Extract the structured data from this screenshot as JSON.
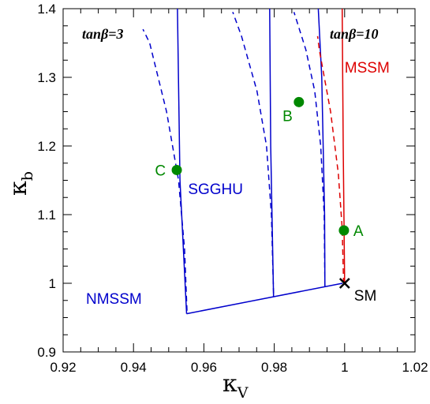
{
  "chart_data": {
    "type": "line",
    "title": "",
    "xlabel": "κ",
    "xlabel_sub": "V",
    "ylabel": "κ",
    "ylabel_sub": "b",
    "xlim": [
      0.92,
      1.02
    ],
    "ylim": [
      0.9,
      1.4
    ],
    "x_ticks": [
      0.92,
      0.94,
      0.96,
      0.98,
      1.0,
      1.02
    ],
    "x_tick_labels": [
      "0.92",
      "0.94",
      "0.96",
      "0.98",
      "1",
      "1.02"
    ],
    "y_ticks": [
      0.9,
      1.0,
      1.1,
      1.2,
      1.3,
      1.4
    ],
    "y_tick_labels": [
      "0.9",
      "1",
      "1.1",
      "1.2",
      "1.3",
      "1.4"
    ],
    "grid": false,
    "colors": {
      "nmssm": "#0000cc",
      "mssm": "#dd0000",
      "points": "#008800",
      "sm": "#000000"
    },
    "series": [
      {
        "model": "nmssm",
        "style": "solid",
        "x": [
          0.9551,
          0.9532,
          0.9525
        ],
        "y": [
          0.9556,
          1.15,
          1.4
        ]
      },
      {
        "model": "nmssm",
        "style": "solid",
        "x": [
          0.9551,
          0.9994
        ],
        "y": [
          0.9556,
          1.0
        ]
      },
      {
        "model": "nmssm",
        "style": "solid",
        "x": [
          0.9798,
          0.979,
          0.9787
        ],
        "y": [
          0.9806,
          1.2,
          1.4
        ]
      },
      {
        "model": "nmssm",
        "style": "solid",
        "x": [
          0.9944,
          0.9943,
          0.9935,
          0.9925
        ],
        "y": [
          0.9954,
          1.1,
          1.3,
          1.4
        ]
      },
      {
        "model": "nmssm",
        "style": "dashed",
        "x": [
          0.9552,
          0.9545,
          0.9528,
          0.9494,
          0.9446,
          0.9427
        ],
        "y": [
          0.96,
          1.05,
          1.15,
          1.25,
          1.35,
          1.37
        ]
      },
      {
        "model": "nmssm",
        "style": "dashed",
        "x": [
          0.9798,
          0.9792,
          0.9778,
          0.9751,
          0.9707,
          0.9682
        ],
        "y": [
          0.985,
          1.1,
          1.2,
          1.28,
          1.36,
          1.395
        ]
      },
      {
        "model": "nmssm",
        "style": "dashed",
        "x": [
          0.9944,
          0.9942,
          0.9932,
          0.9915,
          0.989,
          0.9856
        ],
        "y": [
          0.995,
          1.1,
          1.2,
          1.28,
          1.34,
          1.395
        ]
      },
      {
        "model": "mssm",
        "style": "solid",
        "x": [
          1.0,
          0.9996,
          0.9993
        ],
        "y": [
          1.0,
          1.2,
          1.4
        ]
      },
      {
        "model": "mssm",
        "style": "dashed",
        "x": [
          0.9997,
          0.9993,
          0.9982,
          0.996,
          0.9928,
          0.9923
        ],
        "y": [
          1.0,
          1.08,
          1.16,
          1.25,
          1.34,
          1.36
        ]
      }
    ],
    "points": [
      {
        "label": "A",
        "x": 0.9998,
        "y": 1.077
      },
      {
        "label": "B",
        "x": 0.987,
        "y": 1.264
      },
      {
        "label": "C",
        "x": 0.9523,
        "y": 1.165
      }
    ],
    "sm_point": {
      "label": "SM",
      "x": 1.0,
      "y": 1.0
    },
    "annotations": [
      {
        "text": "MSSM",
        "model": "mssm",
        "x": 1.0,
        "y": 1.307
      },
      {
        "text": "SGGHU",
        "model": "nmssm",
        "x": 0.9555,
        "y": 1.13
      },
      {
        "text": "NMSSM",
        "model": "nmssm",
        "x": 0.9265,
        "y": 0.97
      }
    ],
    "corner_labels": [
      {
        "text": "tanβ=3",
        "position": "top-left"
      },
      {
        "text": "tanβ=10",
        "position": "top-right"
      }
    ]
  }
}
